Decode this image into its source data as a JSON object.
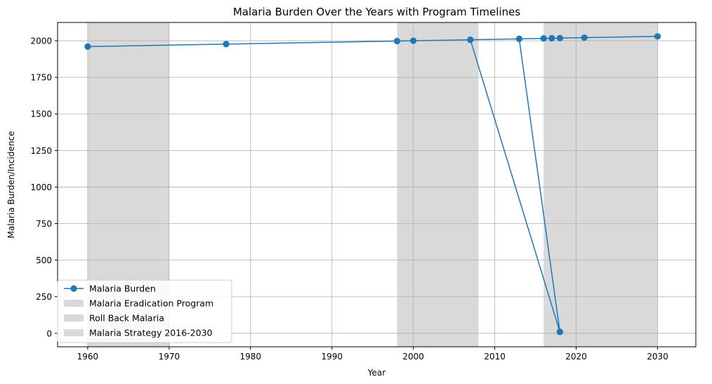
{
  "chart_data": {
    "type": "line",
    "title": "Malaria Burden Over the Years with Program Timelines",
    "xlabel": "Year",
    "ylabel": "Malaria Burden/Incidence",
    "xlim": [
      1956.3,
      2034.7
    ],
    "ylim": [
      -92,
      2125
    ],
    "xticks": [
      1960,
      1970,
      1980,
      1990,
      2000,
      2010,
      2020,
      2030
    ],
    "yticks": [
      0,
      250,
      500,
      750,
      1000,
      1250,
      1500,
      1750,
      2000
    ],
    "grid": true,
    "legend_position": "lower-left",
    "series": [
      {
        "name": "Malaria Burden",
        "color": "#1f77b4",
        "marker": "circle",
        "points": [
          [
            1960,
            1960
          ],
          [
            1977,
            1977
          ],
          [
            1998,
            1998
          ],
          [
            2000,
            2000
          ],
          [
            2007,
            2007
          ],
          [
            2018,
            10
          ],
          [
            2007,
            2007
          ],
          [
            2013,
            2013
          ],
          [
            2018,
            10
          ],
          [
            2013,
            2013
          ],
          [
            2016,
            2016
          ],
          [
            2017,
            2017
          ],
          [
            2018,
            2018
          ],
          [
            2021,
            2021
          ],
          [
            2030,
            2030
          ]
        ]
      }
    ],
    "spans": [
      {
        "name": "Malaria Eradication Program",
        "x": [
          1960,
          1970
        ],
        "color": "#808080",
        "opacity": 0.3
      },
      {
        "name": "Roll Back Malaria",
        "x": [
          1998,
          2008
        ],
        "color": "#808080",
        "opacity": 0.3
      },
      {
        "name": "Malaria Strategy 2016-2030",
        "x": [
          2016,
          2030
        ],
        "color": "#808080",
        "opacity": 0.3
      }
    ]
  }
}
